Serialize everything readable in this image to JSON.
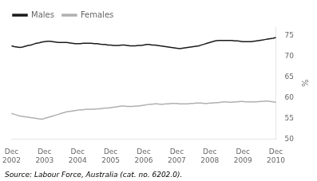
{
  "chart_data": {
    "type": "line",
    "ylabel": "%",
    "annotations": [
      "Source: Labour Force, Australia (cat. no. 6202.0)."
    ],
    "categories": [
      "Dec\n2002",
      null,
      null,
      null,
      null,
      null,
      null,
      null,
      null,
      null,
      null,
      null,
      "Dec\n2003",
      null,
      null,
      null,
      null,
      null,
      null,
      null,
      null,
      null,
      null,
      null,
      "Dec\n2004",
      null,
      null,
      null,
      null,
      null,
      null,
      null,
      null,
      null,
      null,
      null,
      "Dec\n2005",
      null,
      null,
      null,
      null,
      null,
      null,
      null,
      null,
      null,
      null,
      null,
      "Dec\n2006",
      null,
      null,
      null,
      null,
      null,
      null,
      null,
      null,
      null,
      null,
      null,
      "Dec\n2007",
      null,
      null,
      null,
      null,
      null,
      null,
      null,
      null,
      null,
      null,
      null,
      "Dec\n2008",
      null,
      null,
      null,
      null,
      null,
      null,
      null,
      null,
      null,
      null,
      null,
      "Dec\n2009",
      null,
      null,
      null,
      null,
      null,
      null,
      null,
      null,
      null,
      null,
      null,
      "Dec\n2010"
    ],
    "series": [
      {
        "name": "Males",
        "color": "#1a1a1a",
        "values": [
          72.5,
          72.3,
          72.2,
          72.1,
          72.2,
          72.4,
          72.6,
          72.7,
          72.9,
          73.1,
          73.2,
          73.4,
          73.5,
          73.6,
          73.6,
          73.5,
          73.4,
          73.3,
          73.3,
          73.3,
          73.3,
          73.2,
          73.1,
          73.0,
          73.0,
          73.0,
          73.1,
          73.1,
          73.1,
          73.1,
          73.0,
          73.0,
          72.9,
          72.8,
          72.8,
          72.7,
          72.7,
          72.6,
          72.6,
          72.6,
          72.7,
          72.7,
          72.6,
          72.5,
          72.5,
          72.5,
          72.6,
          72.6,
          72.7,
          72.8,
          72.8,
          72.7,
          72.7,
          72.6,
          72.5,
          72.4,
          72.3,
          72.2,
          72.1,
          72.0,
          71.9,
          71.8,
          71.9,
          72.0,
          72.1,
          72.2,
          72.3,
          72.4,
          72.5,
          72.7,
          72.9,
          73.1,
          73.3,
          73.5,
          73.7,
          73.8,
          73.8,
          73.8,
          73.8,
          73.8,
          73.8,
          73.7,
          73.7,
          73.6,
          73.5,
          73.5,
          73.5,
          73.5,
          73.6,
          73.7,
          73.8,
          73.9,
          74.0,
          74.1,
          74.2,
          74.3,
          74.5
        ]
      },
      {
        "name": "Females",
        "color": "#b0b0b0",
        "values": [
          56.2,
          56.0,
          55.8,
          55.6,
          55.5,
          55.4,
          55.3,
          55.2,
          55.1,
          55.0,
          54.9,
          54.8,
          55.0,
          55.2,
          55.4,
          55.6,
          55.8,
          56.0,
          56.2,
          56.4,
          56.6,
          56.7,
          56.8,
          56.9,
          57.0,
          57.1,
          57.1,
          57.2,
          57.2,
          57.2,
          57.2,
          57.3,
          57.3,
          57.4,
          57.5,
          57.5,
          57.6,
          57.7,
          57.8,
          57.9,
          58.0,
          58.0,
          57.9,
          57.9,
          57.9,
          58.0,
          58.0,
          58.1,
          58.2,
          58.3,
          58.4,
          58.4,
          58.5,
          58.5,
          58.4,
          58.4,
          58.5,
          58.5,
          58.6,
          58.6,
          58.6,
          58.5,
          58.5,
          58.5,
          58.5,
          58.6,
          58.6,
          58.7,
          58.7,
          58.7,
          58.6,
          58.6,
          58.7,
          58.7,
          58.8,
          58.8,
          58.9,
          59.0,
          59.0,
          58.9,
          58.9,
          59.0,
          59.0,
          59.1,
          59.1,
          59.0,
          59.0,
          59.0,
          59.0,
          59.0,
          59.1,
          59.1,
          59.2,
          59.2,
          59.1,
          59.0,
          58.9
        ]
      }
    ],
    "ylim": [
      50,
      77
    ],
    "yticks": [
      50,
      55,
      60,
      65,
      70,
      75
    ],
    "grid": false,
    "legend": "upper left"
  }
}
